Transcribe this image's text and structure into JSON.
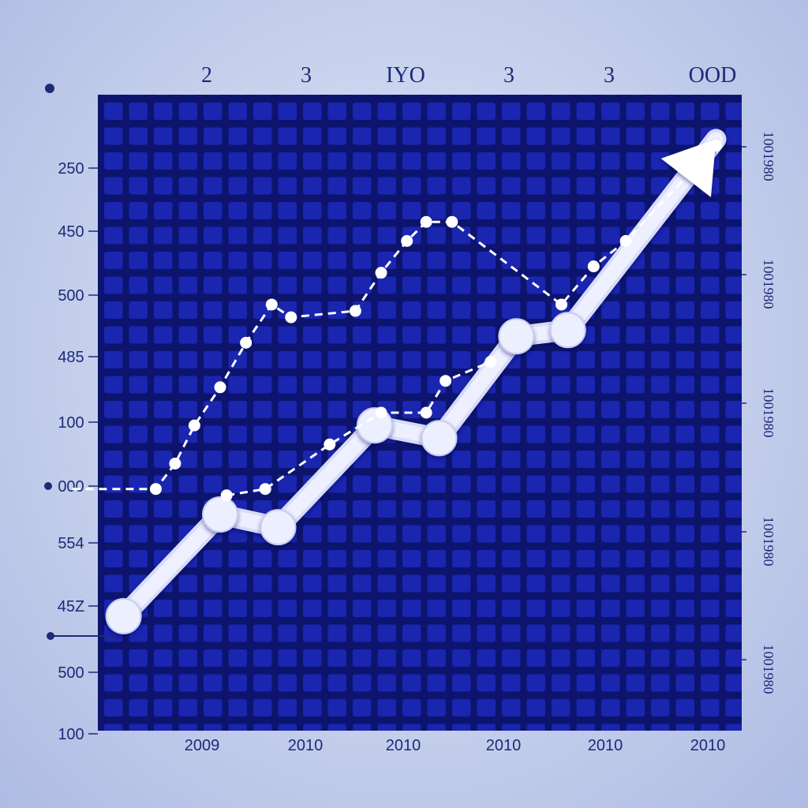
{
  "chart_data": {
    "type": "line",
    "title": "",
    "xlabel": "",
    "ylabel": "",
    "grid": true,
    "legend": "none",
    "top_labels": [
      "2",
      "3",
      "IYO",
      "3",
      "3",
      "OOD"
    ],
    "x_tick_labels": [
      "2009",
      "2010",
      "2010",
      "2010",
      "2010",
      "2010"
    ],
    "y_tick_labels": [
      "250",
      "450",
      "500",
      "485",
      "100",
      "000",
      "554",
      "45Z",
      "500",
      "100"
    ],
    "right_tick_labels": [
      "1001980",
      "1001980",
      "1001980",
      "1001980",
      "1001980"
    ],
    "x_domain": [
      0,
      10
    ],
    "y_domain": [
      0,
      100
    ],
    "series": [
      {
        "style": "solid",
        "color": "#eef0ff",
        "points": [
          [
            0.4,
            18
          ],
          [
            1.9,
            34
          ],
          [
            2.8,
            32
          ],
          [
            4.3,
            48
          ],
          [
            5.3,
            46
          ],
          [
            6.5,
            62
          ],
          [
            7.3,
            63
          ],
          [
            9.6,
            93
          ]
        ]
      },
      {
        "style": "dashed",
        "color": "#ffffff",
        "points": [
          [
            -0.4,
            38
          ],
          [
            0.9,
            38
          ],
          [
            1.2,
            42
          ],
          [
            1.5,
            48
          ],
          [
            1.9,
            54
          ],
          [
            2.3,
            61
          ],
          [
            2.7,
            67
          ],
          [
            3.0,
            65
          ],
          [
            4.0,
            66
          ],
          [
            4.4,
            72
          ],
          [
            4.8,
            77
          ],
          [
            5.1,
            80
          ],
          [
            5.5,
            80
          ],
          [
            7.2,
            67
          ],
          [
            7.7,
            73
          ],
          [
            8.2,
            77
          ],
          [
            9.6,
            92
          ]
        ]
      },
      {
        "style": "dashed",
        "color": "#ffffff",
        "points": [
          [
            2.0,
            37
          ],
          [
            2.6,
            38
          ],
          [
            3.6,
            45
          ],
          [
            4.4,
            50
          ],
          [
            5.1,
            50
          ],
          [
            5.4,
            55
          ],
          [
            6.1,
            58
          ]
        ]
      }
    ]
  }
}
